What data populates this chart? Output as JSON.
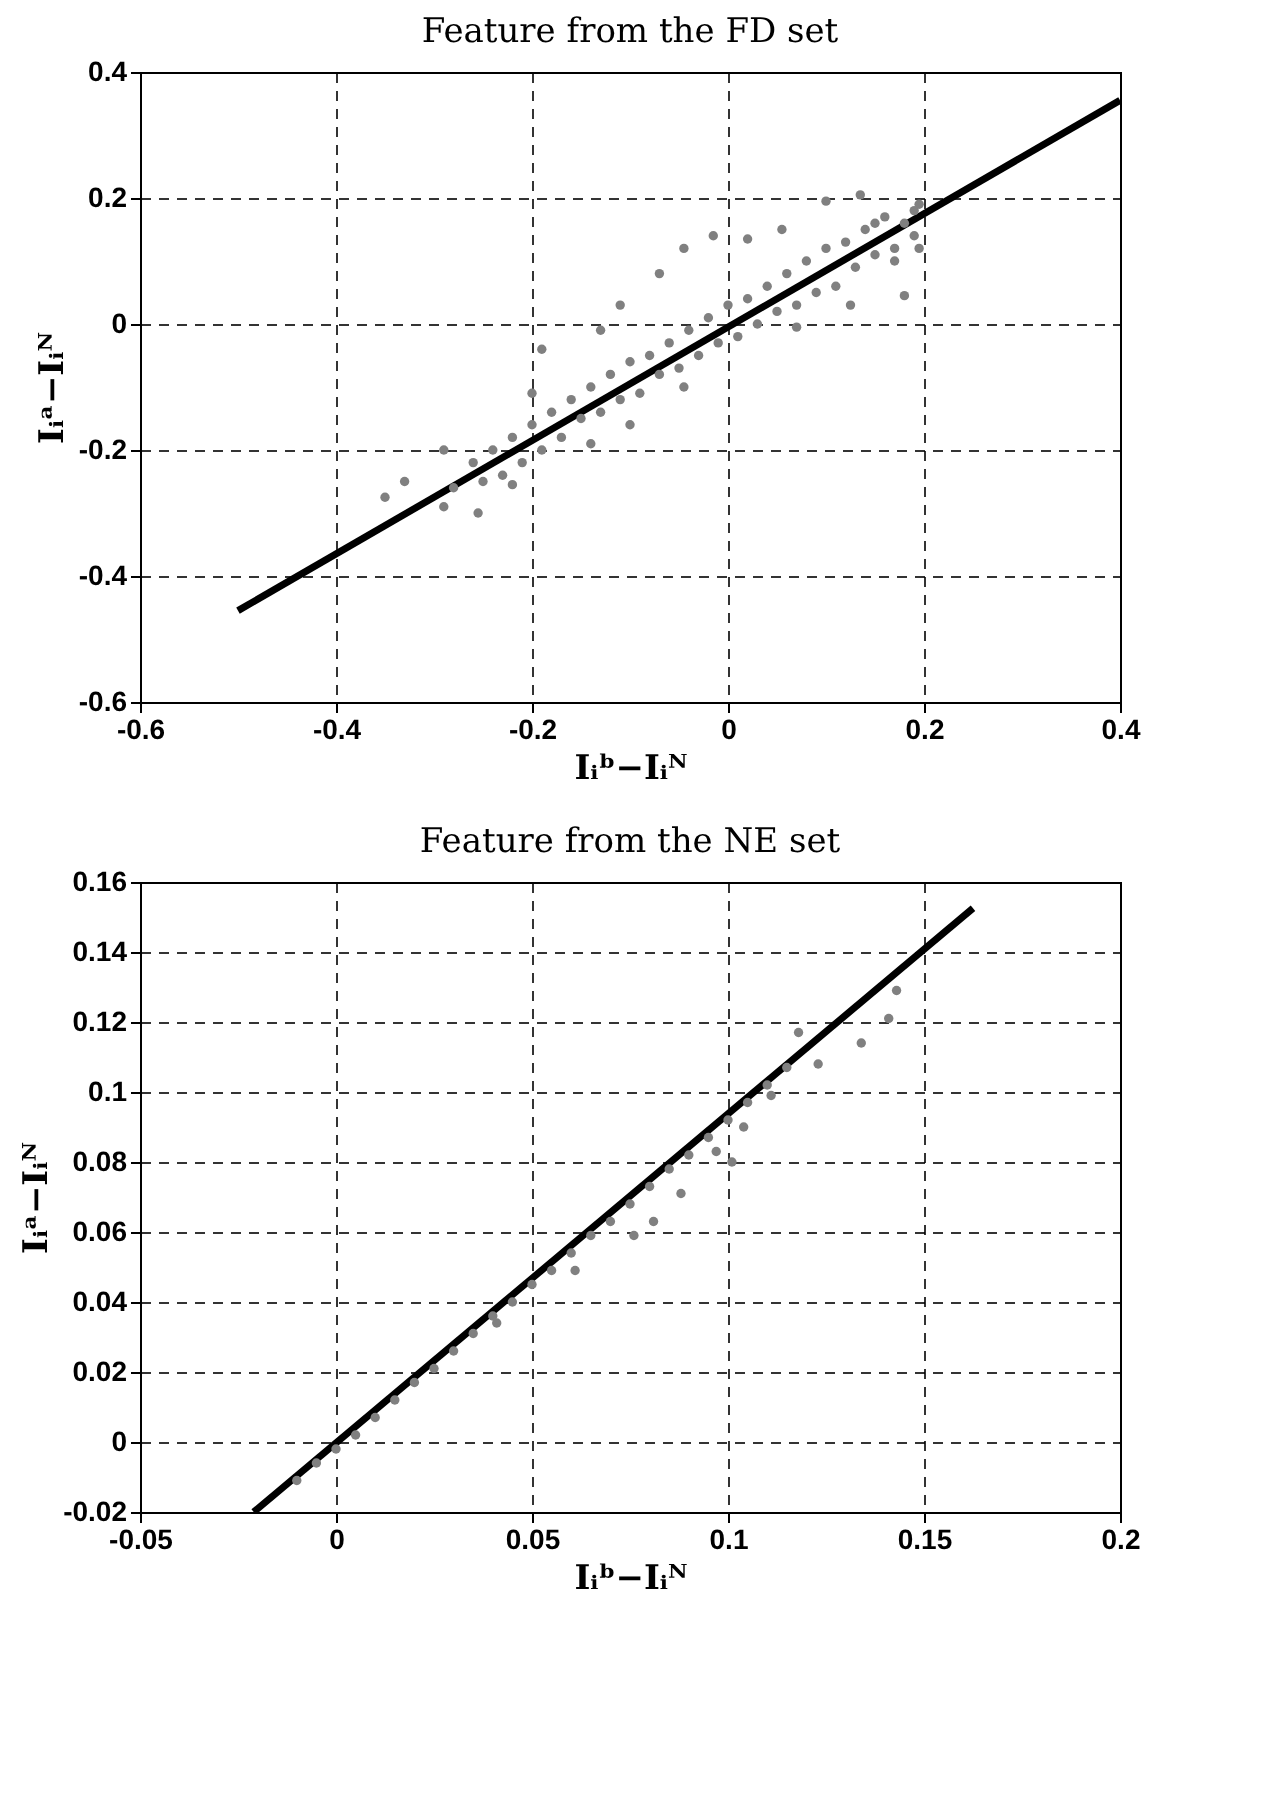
{
  "chart_data": [
    {
      "type": "scatter",
      "title": "Feature from the FD set",
      "xlabel": "Iᵢᵇ−Iᵢᴺ",
      "ylabel": "Iᵢᵃ−Iᵢᴺ",
      "xlim": [
        -0.6,
        0.4
      ],
      "ylim": [
        -0.6,
        0.4
      ],
      "xticks": [
        -0.6,
        -0.4,
        -0.2,
        0,
        0.2,
        0.4
      ],
      "yticks": [
        -0.6,
        -0.4,
        -0.2,
        0,
        0.2,
        0.4
      ],
      "grid": true,
      "series": [
        {
          "type": "scatter",
          "marker": "circle",
          "color": "#808080",
          "x": [
            -0.35,
            -0.33,
            -0.255,
            -0.19,
            -0.2,
            -0.13,
            -0.11,
            -0.07,
            -0.045,
            -0.015,
            0.02,
            0.055,
            0.1,
            0.135,
            0.18,
            0.125,
            0.07,
            -0.045,
            -0.1,
            -0.14,
            -0.22,
            -0.29,
            -0.29,
            0.195,
            0.195,
            -0.28,
            -0.26,
            -0.25,
            -0.24,
            -0.23,
            -0.22,
            -0.21,
            -0.2,
            -0.19,
            -0.18,
            -0.17,
            -0.16,
            -0.15,
            -0.14,
            -0.13,
            -0.12,
            -0.11,
            -0.1,
            -0.09,
            -0.08,
            -0.07,
            -0.06,
            -0.05,
            -0.04,
            -0.03,
            -0.02,
            -0.01,
            0,
            0.01,
            0.02,
            0.03,
            0.04,
            0.05,
            0.06,
            0.07,
            0.08,
            0.09,
            0.1,
            0.11,
            0.12,
            0.13,
            0.14,
            0.15,
            0.16,
            0.17,
            0.18,
            0.19,
            0.19,
            0.17,
            0.15
          ],
          "values": [
            -0.275,
            -0.25,
            -0.3,
            -0.04,
            -0.11,
            -0.01,
            0.03,
            0.08,
            0.12,
            0.14,
            0.135,
            0.15,
            0.195,
            0.205,
            0.045,
            0.03,
            -0.005,
            -0.1,
            -0.16,
            -0.19,
            -0.255,
            -0.29,
            -0.2,
            0.12,
            0.19,
            -0.26,
            -0.22,
            -0.25,
            -0.2,
            -0.24,
            -0.18,
            -0.22,
            -0.16,
            -0.2,
            -0.14,
            -0.18,
            -0.12,
            -0.15,
            -0.1,
            -0.14,
            -0.08,
            -0.12,
            -0.06,
            -0.11,
            -0.05,
            -0.08,
            -0.03,
            -0.07,
            -0.01,
            -0.05,
            0.01,
            -0.03,
            0.03,
            -0.02,
            0.04,
            0.0,
            0.06,
            0.02,
            0.08,
            0.03,
            0.1,
            0.05,
            0.12,
            0.06,
            0.13,
            0.09,
            0.15,
            0.11,
            0.17,
            0.12,
            0.16,
            0.18,
            0.14,
            0.1,
            0.16
          ]
        },
        {
          "type": "line",
          "line_style": "solid",
          "color": "#000000",
          "x": [
            -0.5,
            0.4
          ],
          "values": [
            -0.455,
            0.355
          ]
        }
      ]
    },
    {
      "type": "scatter",
      "title": "Feature from the NE set",
      "xlabel": "Iᵢᵇ−Iᵢᴺ",
      "ylabel": "Iᵢᵃ−Iᵢᴺ",
      "xlim": [
        -0.05,
        0.2
      ],
      "ylim": [
        -0.02,
        0.16
      ],
      "xticks": [
        -0.05,
        0,
        0.05,
        0.1,
        0.15,
        0.2
      ],
      "yticks": [
        -0.02,
        0,
        0.02,
        0.04,
        0.06,
        0.08,
        0.1,
        0.12,
        0.14,
        0.16
      ],
      "grid": true,
      "series": [
        {
          "type": "scatter",
          "marker": "circle",
          "color": "#808080",
          "x": [
            0.143,
            0.141,
            0.134,
            0.123,
            0.118,
            0.111,
            0.104,
            0.101,
            0.097,
            0.088,
            0.081,
            0.076,
            0.061,
            0.041,
            -0.01,
            -0.005,
            0,
            0.005,
            0.01,
            0.015,
            0.02,
            0.025,
            0.03,
            0.035,
            0.04,
            0.045,
            0.05,
            0.055,
            0.06,
            0.065,
            0.07,
            0.075,
            0.08,
            0.085,
            0.09,
            0.095,
            0.1,
            0.105,
            0.11,
            0.115
          ],
          "values": [
            0.129,
            0.121,
            0.114,
            0.108,
            0.117,
            0.099,
            0.09,
            0.08,
            0.083,
            0.071,
            0.063,
            0.059,
            0.049,
            0.034,
            -0.011,
            -0.006,
            -0.002,
            0.002,
            0.007,
            0.012,
            0.017,
            0.021,
            0.026,
            0.031,
            0.036,
            0.04,
            0.045,
            0.049,
            0.054,
            0.059,
            0.063,
            0.068,
            0.073,
            0.078,
            0.082,
            0.087,
            0.092,
            0.097,
            0.102,
            0.107
          ]
        },
        {
          "type": "line",
          "line_style": "solid",
          "color": "#000000",
          "x": [
            -0.021,
            0.1625
          ],
          "values": [
            -0.02,
            0.1525
          ]
        }
      ]
    }
  ]
}
